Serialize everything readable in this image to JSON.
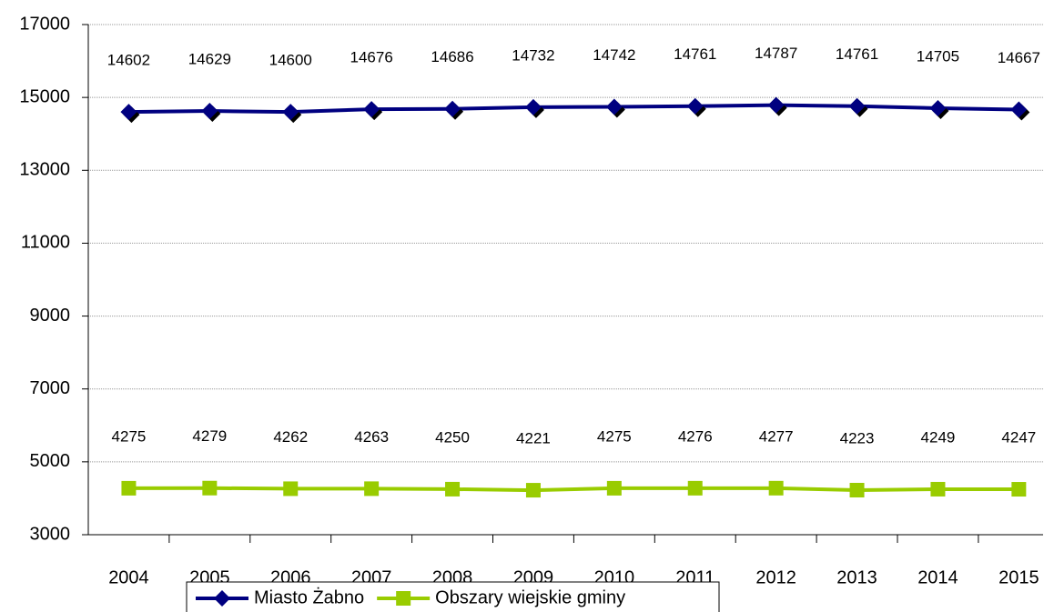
{
  "chart_data": {
    "type": "line",
    "categories": [
      "2004",
      "2005",
      "2006",
      "2007",
      "2008",
      "2009",
      "2010",
      "2011",
      "2012",
      "2013",
      "2014",
      "2015"
    ],
    "series": [
      {
        "name": "Miasto Żabno",
        "color": "#000080",
        "marker": "diamond",
        "values": [
          14602,
          14629,
          14600,
          14676,
          14686,
          14732,
          14742,
          14761,
          14787,
          14761,
          14705,
          14667
        ]
      },
      {
        "name": "Obszary wiejskie gminy",
        "color": "#99cc00",
        "marker": "square",
        "values": [
          4275,
          4279,
          4262,
          4263,
          4250,
          4221,
          4275,
          4276,
          4277,
          4223,
          4249,
          4247
        ]
      }
    ],
    "ylim": [
      3000,
      17000
    ],
    "yticks": [
      3000,
      5000,
      7000,
      9000,
      11000,
      13000,
      15000,
      17000
    ],
    "grid": true,
    "legend": "bottom"
  }
}
